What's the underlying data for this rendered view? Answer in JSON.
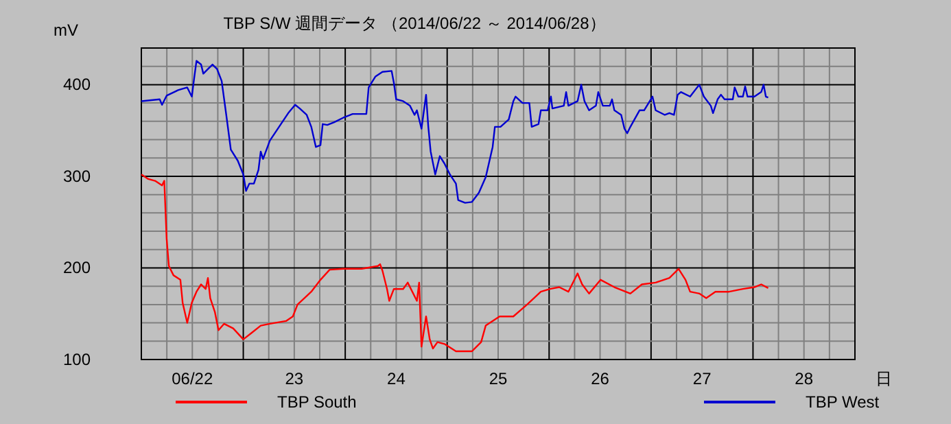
{
  "chart_data": {
    "type": "line",
    "title": "TBP S/W  週間データ （2014/06/22 ～ 2014/06/28）",
    "xlabel": "日",
    "ylabel": "mV",
    "xlim": [
      22,
      29
    ],
    "ylim": [
      100,
      440
    ],
    "xticks": [
      {
        "value": 22,
        "label": null
      },
      {
        "value": 22.25,
        "label": null
      },
      {
        "value": 22.5,
        "label": "06/22"
      },
      {
        "value": 22.75,
        "label": null
      },
      {
        "value": 23,
        "label": null
      },
      {
        "value": 23.25,
        "label": null
      },
      {
        "value": 23.5,
        "label": "23"
      },
      {
        "value": 23.75,
        "label": null
      },
      {
        "value": 24,
        "label": null
      },
      {
        "value": 24.25,
        "label": null
      },
      {
        "value": 24.5,
        "label": "24"
      },
      {
        "value": 24.75,
        "label": null
      },
      {
        "value": 25,
        "label": null
      },
      {
        "value": 25.25,
        "label": null
      },
      {
        "value": 25.5,
        "label": "25"
      },
      {
        "value": 25.75,
        "label": null
      },
      {
        "value": 26,
        "label": null
      },
      {
        "value": 26.25,
        "label": null
      },
      {
        "value": 26.5,
        "label": "26"
      },
      {
        "value": 26.75,
        "label": null
      },
      {
        "value": 27,
        "label": null
      },
      {
        "value": 27.25,
        "label": null
      },
      {
        "value": 27.5,
        "label": "27"
      },
      {
        "value": 27.75,
        "label": null
      },
      {
        "value": 28,
        "label": null
      },
      {
        "value": 28.25,
        "label": null
      },
      {
        "value": 28.5,
        "label": "28"
      },
      {
        "value": 28.75,
        "label": null
      },
      {
        "value": 29,
        "label": null
      }
    ],
    "yticks": [
      100,
      {
        "value": 120,
        "label": null
      },
      {
        "value": 140,
        "label": null
      },
      {
        "value": 160,
        "label": null
      },
      {
        "value": 180,
        "label": null
      },
      200,
      {
        "value": 220,
        "label": null
      },
      {
        "value": 240,
        "label": null
      },
      {
        "value": 260,
        "label": null
      },
      {
        "value": 280,
        "label": null
      },
      300,
      {
        "value": 320,
        "label": null
      },
      {
        "value": 340,
        "label": null
      },
      {
        "value": 360,
        "label": null
      },
      {
        "value": 380,
        "label": null
      },
      400,
      {
        "value": 420,
        "label": null
      },
      {
        "value": 440,
        "label": null
      }
    ],
    "grid": true,
    "legend": "bottom",
    "series": [
      {
        "name": "TBP South",
        "color": "#ff0000",
        "x": [
          22.0,
          22.068,
          22.135,
          22.203,
          22.225,
          22.248,
          22.27,
          22.315,
          22.383,
          22.405,
          22.45,
          22.495,
          22.541,
          22.586,
          22.631,
          22.653,
          22.676,
          22.721,
          22.757,
          22.811,
          22.901,
          23.0,
          23.081,
          23.171,
          23.261,
          23.419,
          23.486,
          23.532,
          23.599,
          23.667,
          23.757,
          23.847,
          23.982,
          24.162,
          24.32,
          24.342,
          24.365,
          24.41,
          24.432,
          24.477,
          24.568,
          24.613,
          24.703,
          24.725,
          24.748,
          24.793,
          24.829,
          24.86,
          24.905,
          24.973,
          25.086,
          25.243,
          25.333,
          25.378,
          25.514,
          25.649,
          25.784,
          25.919,
          26.009,
          26.099,
          26.189,
          26.279,
          26.324,
          26.392,
          26.505,
          26.64,
          26.797,
          26.91,
          27.045,
          27.18,
          27.27,
          27.338,
          27.383,
          27.473,
          27.541,
          27.631,
          27.766,
          27.901,
          28.014,
          28.081,
          28.149
        ],
        "values": [
          302,
          297,
          295,
          290,
          295,
          232,
          202,
          192,
          187,
          162,
          140,
          162,
          174,
          182,
          177,
          189,
          167,
          152,
          132,
          139,
          134,
          122,
          129,
          137,
          139,
          142,
          147,
          160,
          167,
          174,
          187,
          198,
          199,
          199,
          202,
          204,
          197,
          177,
          164,
          177,
          177,
          184,
          164,
          184,
          114,
          147,
          122,
          112,
          119,
          117,
          109,
          109,
          119,
          137,
          147,
          147,
          160,
          174,
          177,
          179,
          174,
          194,
          182,
          172,
          187,
          179,
          172,
          182,
          184,
          189,
          199,
          187,
          174,
          172,
          167,
          174,
          174,
          177,
          179,
          182,
          178
        ]
      },
      {
        "name": "TBP West",
        "color": "#0000d0",
        "x": [
          22.0,
          22.18,
          22.203,
          22.248,
          22.36,
          22.45,
          22.495,
          22.518,
          22.541,
          22.586,
          22.608,
          22.653,
          22.698,
          22.743,
          22.788,
          22.833,
          22.878,
          22.946,
          23.0,
          23.027,
          23.059,
          23.104,
          23.149,
          23.171,
          23.194,
          23.261,
          23.351,
          23.441,
          23.509,
          23.554,
          23.622,
          23.667,
          23.712,
          23.757,
          23.779,
          23.824,
          23.892,
          23.982,
          24.072,
          24.207,
          24.23,
          24.297,
          24.365,
          24.455,
          24.477,
          24.5,
          24.568,
          24.635,
          24.68,
          24.703,
          24.748,
          24.793,
          24.815,
          24.838,
          24.883,
          24.928,
          24.973,
          25.027,
          25.086,
          25.108,
          25.176,
          25.243,
          25.311,
          25.378,
          25.446,
          25.468,
          25.523,
          25.604,
          25.649,
          25.671,
          25.739,
          25.806,
          25.829,
          25.896,
          25.919,
          25.986,
          26.018,
          26.032,
          26.144,
          26.167,
          26.189,
          26.279,
          26.315,
          26.347,
          26.392,
          26.459,
          26.482,
          26.527,
          26.595,
          26.617,
          26.64,
          26.707,
          26.739,
          26.766,
          26.797,
          26.887,
          26.932,
          27.014,
          27.045,
          27.135,
          27.18,
          27.225,
          27.261,
          27.293,
          27.383,
          27.473,
          27.518,
          27.586,
          27.608,
          27.653,
          27.685,
          27.721,
          27.802,
          27.82,
          27.856,
          27.901,
          27.923,
          27.946,
          28.014,
          28.081,
          28.104,
          28.126,
          28.149
        ],
        "values": [
          382,
          384,
          378,
          388,
          394,
          397,
          387,
          407,
          426,
          422,
          412,
          417,
          422,
          417,
          404,
          367,
          329,
          317,
          302,
          284,
          292,
          292,
          307,
          327,
          319,
          339,
          354,
          369,
          378,
          374,
          367,
          354,
          332,
          334,
          357,
          356,
          359,
          364,
          368,
          368,
          397,
          409,
          414,
          415,
          402,
          384,
          382,
          377,
          367,
          372,
          352,
          389,
          354,
          327,
          302,
          322,
          314,
          302,
          292,
          274,
          271,
          272,
          282,
          299,
          332,
          354,
          354,
          362,
          382,
          387,
          380,
          380,
          354,
          357,
          372,
          372,
          387,
          374,
          377,
          392,
          377,
          382,
          400,
          382,
          372,
          377,
          392,
          377,
          377,
          384,
          372,
          367,
          352,
          347,
          354,
          372,
          372,
          387,
          372,
          367,
          369,
          367,
          389,
          392,
          387,
          400,
          387,
          377,
          369,
          384,
          389,
          384,
          384,
          397,
          387,
          387,
          398,
          387,
          387,
          392,
          400,
          387,
          386
        ]
      }
    ]
  }
}
